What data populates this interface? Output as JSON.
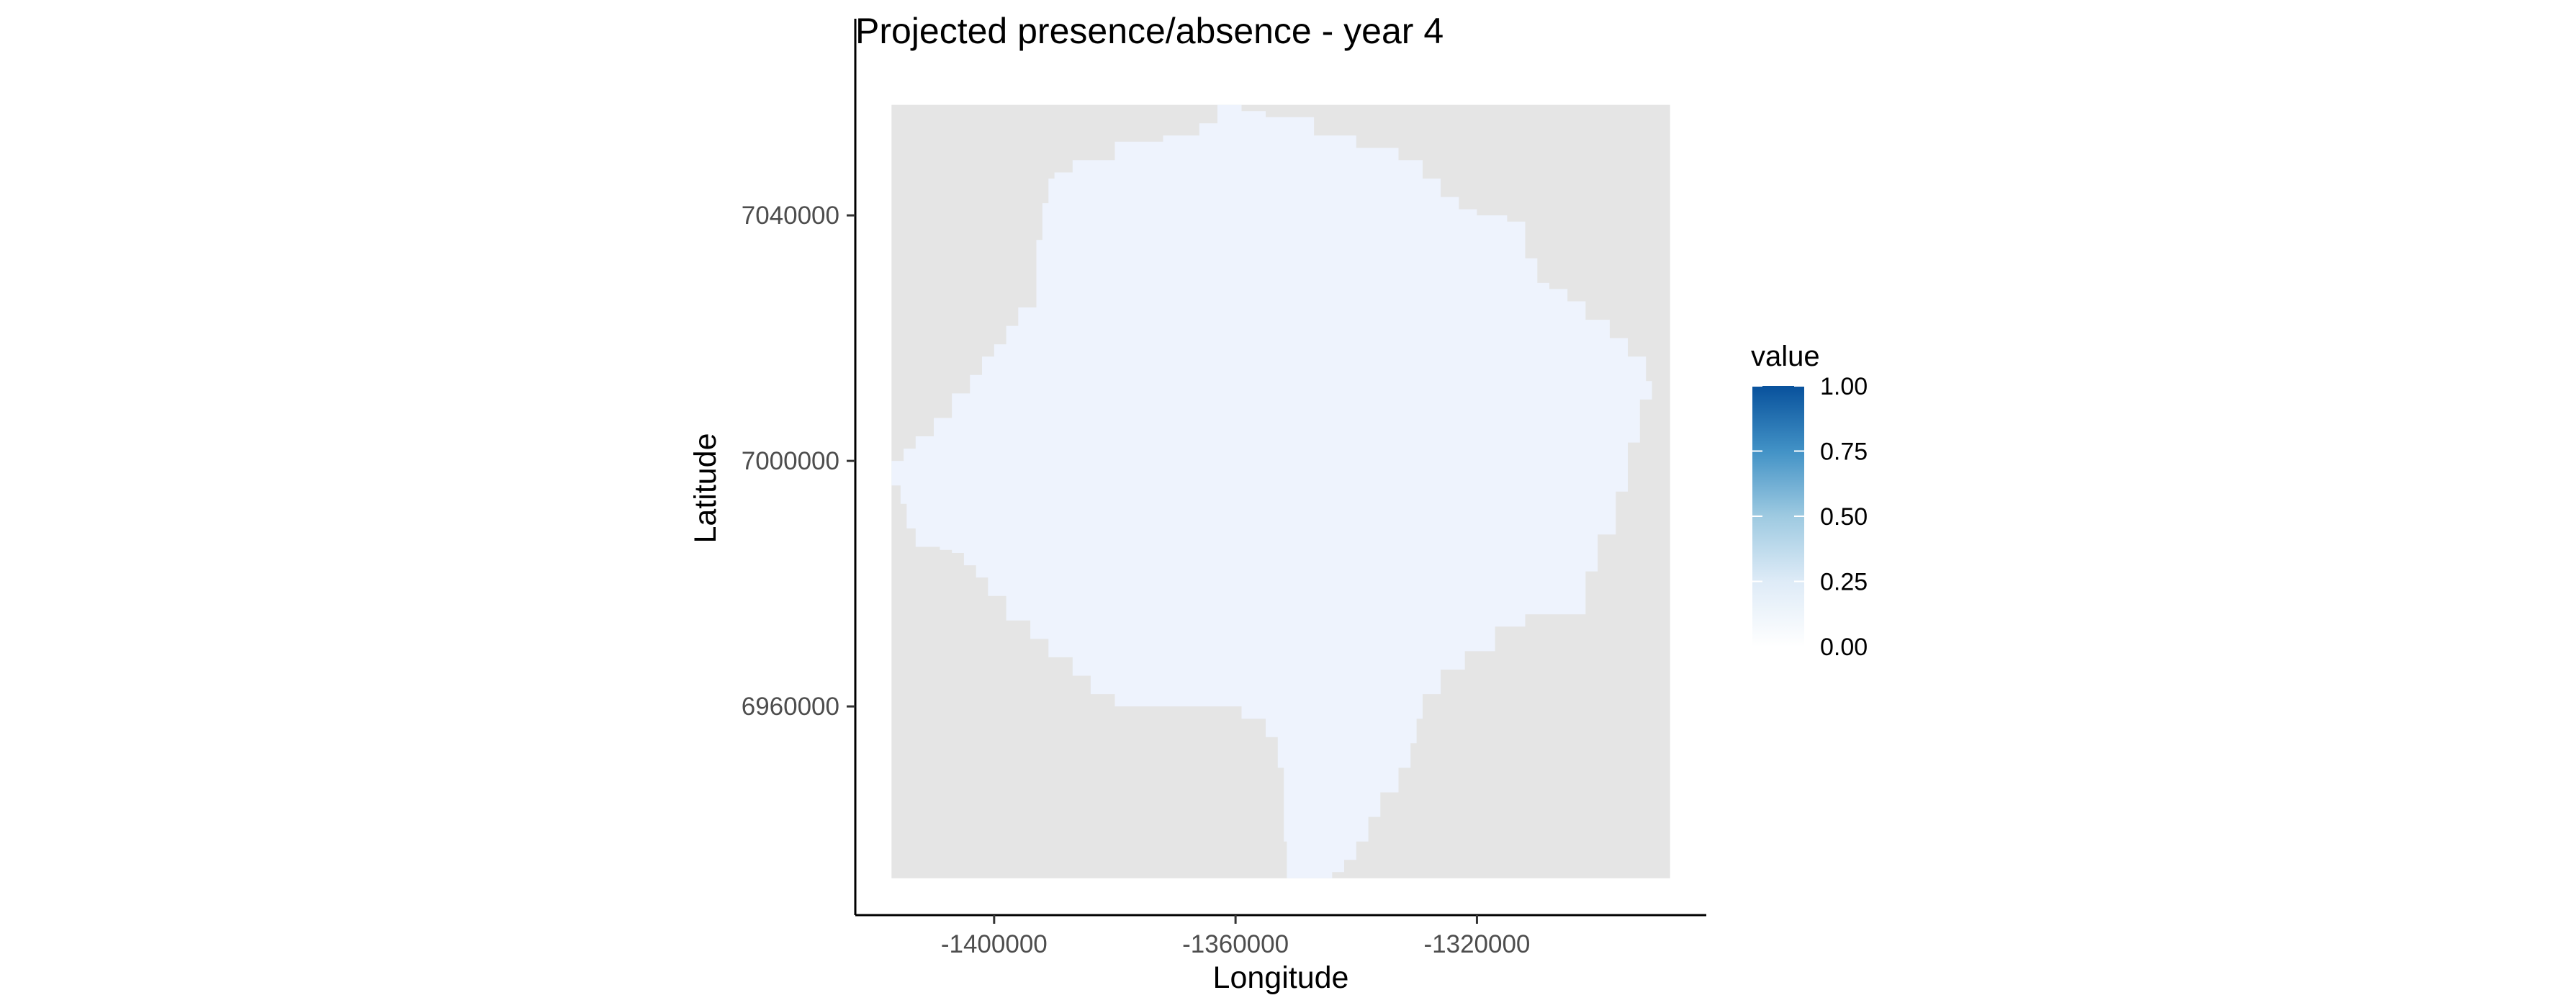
{
  "chart_data": {
    "type": "heatmap",
    "title": "Projected presence/absence - year 4",
    "xlabel": "Longitude",
    "ylabel": "Latitude",
    "xlim": [
      -1423000,
      -1282000
    ],
    "ylim": [
      6926000,
      7065000
    ],
    "x_ticks": [
      {
        "value": -1400000,
        "label": "-1400000"
      },
      {
        "value": -1360000,
        "label": "-1360000"
      },
      {
        "value": -1320000,
        "label": "-1320000"
      }
    ],
    "y_ticks": [
      {
        "value": 6960000,
        "label": "6960000"
      },
      {
        "value": 7000000,
        "label": "7000000"
      },
      {
        "value": 7040000,
        "label": "7040000"
      }
    ],
    "raster_extent": {
      "x": [
        -1417000,
        -1288000
      ],
      "y": [
        6932000,
        7058000
      ]
    },
    "na_color": "#e5e5e5",
    "region_value": 0.0,
    "region_color": "#eef3fd",
    "region_outline": [
      [
        -1417000,
        6996000
      ],
      [
        -1415500,
        6993000
      ],
      [
        -1414500,
        6989000
      ],
      [
        -1413000,
        6986000
      ],
      [
        -1409000,
        6985500
      ],
      [
        -1407000,
        6985000
      ],
      [
        -1405000,
        6983000
      ],
      [
        -1403000,
        6981000
      ],
      [
        -1401000,
        6978000
      ],
      [
        -1398000,
        6974000
      ],
      [
        -1394000,
        6971000
      ],
      [
        -1391000,
        6968000
      ],
      [
        -1387000,
        6965000
      ],
      [
        -1384000,
        6962000
      ],
      [
        -1380000,
        6960000
      ],
      [
        -1362000,
        6960000
      ],
      [
        -1359000,
        6958000
      ],
      [
        -1355000,
        6955000
      ],
      [
        -1353000,
        6950000
      ],
      [
        -1352000,
        6944000
      ],
      [
        -1352000,
        6938000
      ],
      [
        -1351500,
        6932000
      ],
      [
        -1344000,
        6933000
      ],
      [
        -1342000,
        6935000
      ],
      [
        -1340000,
        6938000
      ],
      [
        -1338000,
        6942000
      ],
      [
        -1336000,
        6946000
      ],
      [
        -1333000,
        6950000
      ],
      [
        -1331000,
        6954000
      ],
      [
        -1330000,
        6958000
      ],
      [
        -1329000,
        6962000
      ],
      [
        -1326000,
        6966000
      ],
      [
        -1322000,
        6969000
      ],
      [
        -1317000,
        6973000
      ],
      [
        -1312000,
        6975000
      ],
      [
        -1303000,
        6975000
      ],
      [
        -1302000,
        6982000
      ],
      [
        -1300000,
        6988000
      ],
      [
        -1297000,
        6995000
      ],
      [
        -1295000,
        7003000
      ],
      [
        -1293000,
        7010000
      ],
      [
        -1291000,
        7013000
      ],
      [
        -1288000,
        7013000
      ],
      [
        -1292000,
        7017000
      ],
      [
        -1295000,
        7020000
      ],
      [
        -1298000,
        7023000
      ],
      [
        -1302000,
        7026000
      ],
      [
        -1305000,
        7028000
      ],
      [
        -1308000,
        7029000
      ],
      [
        -1310000,
        7033000
      ],
      [
        -1312000,
        7039000
      ],
      [
        -1315000,
        7040000
      ],
      [
        -1320000,
        7041000
      ],
      [
        -1323000,
        7043000
      ],
      [
        -1326000,
        7046000
      ],
      [
        -1329000,
        7049000
      ],
      [
        -1333000,
        7051000
      ],
      [
        -1340000,
        7053000
      ],
      [
        -1347000,
        7056000
      ],
      [
        -1355000,
        7057000
      ],
      [
        -1359000,
        7058000
      ],
      [
        -1362000,
        7058000
      ],
      [
        -1363000,
        7055000
      ],
      [
        -1366000,
        7053000
      ],
      [
        -1372000,
        7052000
      ],
      [
        -1380000,
        7049000
      ],
      [
        -1387000,
        7047000
      ],
      [
        -1390000,
        7046000
      ],
      [
        -1391000,
        7042000
      ],
      [
        -1392000,
        7036000
      ],
      [
        -1393000,
        7025000
      ],
      [
        -1396000,
        7022000
      ],
      [
        -1398000,
        7019000
      ],
      [
        -1400000,
        7017000
      ],
      [
        -1402000,
        7014000
      ],
      [
        -1404000,
        7011000
      ],
      [
        -1407000,
        7007000
      ],
      [
        -1410000,
        7004000
      ],
      [
        -1413000,
        7002000
      ],
      [
        -1415000,
        7000000
      ],
      [
        -1417000,
        6998000
      ]
    ],
    "legend": {
      "title": "value",
      "placement": "right",
      "colors": [
        "#ffffff",
        "#deebf7",
        "#9ecae1",
        "#4292c6",
        "#08519c"
      ],
      "ticks": [
        {
          "value": 0.0,
          "label": "0.00"
        },
        {
          "value": 0.25,
          "label": "0.25"
        },
        {
          "value": 0.5,
          "label": "0.50"
        },
        {
          "value": 0.75,
          "label": "0.75"
        },
        {
          "value": 1.0,
          "label": "1.00"
        }
      ]
    },
    "grid": false
  }
}
